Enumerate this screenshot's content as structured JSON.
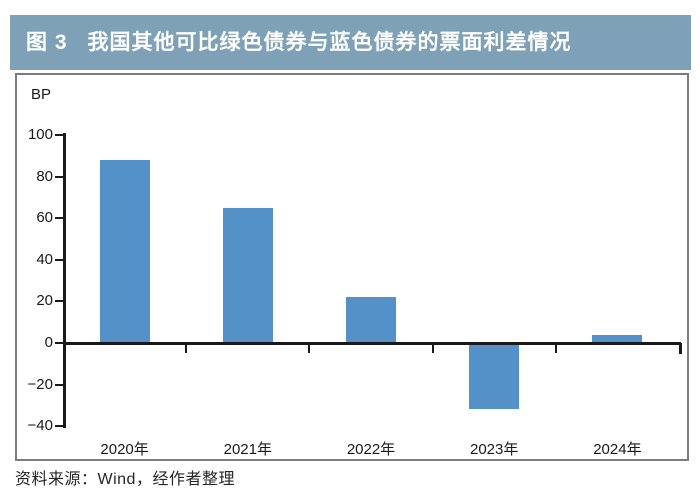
{
  "header": {
    "figure_label": "图 3",
    "title": "我国其他可比绿色债券与蓝色债券的票面利差情况"
  },
  "chart_data": {
    "type": "bar",
    "title": "我国其他可比绿色债券与蓝色债券的票面利差情况",
    "unit_label": "BP",
    "xlabel": "",
    "ylabel": "BP",
    "categories": [
      "2020年",
      "2021年",
      "2022年",
      "2023年",
      "2024年"
    ],
    "values": [
      88,
      65,
      22,
      -31,
      4
    ],
    "ylim": [
      -40,
      100
    ],
    "yticks": [
      100,
      80,
      60,
      40,
      20,
      0,
      -20,
      -40
    ],
    "grid": false,
    "legend": "none",
    "bar_color": "#5491c8"
  },
  "source": {
    "text": "资料来源：Wind，经作者整理"
  },
  "colors": {
    "header_bg": "#7fa1b8",
    "header_text": "#ffffff",
    "axis": "#1a1a1a",
    "panel_border": "#7d7d7d",
    "background": "#ffffff"
  }
}
